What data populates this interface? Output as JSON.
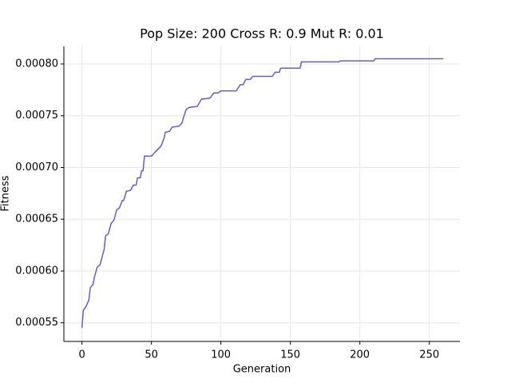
{
  "chart_data": {
    "type": "line",
    "title": "Pop Size: 200 Cross R: 0.9 Mut R: 0.01",
    "xlabel": "Generation",
    "ylabel": "Fitness",
    "x": [
      0,
      1,
      3,
      5,
      6,
      8,
      9,
      11,
      13,
      15,
      16,
      17,
      19,
      21,
      23,
      25,
      27,
      29,
      30,
      32,
      35,
      37,
      39,
      40,
      42,
      43,
      44,
      45,
      50,
      52,
      55,
      57,
      59,
      60,
      63,
      65,
      70,
      72,
      73,
      75,
      77,
      83,
      86,
      92,
      95,
      98,
      100,
      111,
      114,
      116,
      118,
      121,
      123,
      137,
      139,
      142,
      143,
      157,
      158,
      185,
      186,
      210,
      211,
      260
    ],
    "series": [
      {
        "color": "#6a5acd",
        "values": [
          0.000545,
          0.000562,
          0.000566,
          0.000572,
          0.000584,
          0.000587,
          0.000594,
          0.000604,
          0.000606,
          0.000616,
          0.000621,
          0.000634,
          0.000636,
          0.000646,
          0.000649,
          0.000659,
          0.000661,
          0.000668,
          0.000668,
          0.000677,
          0.000678,
          0.000683,
          0.000683,
          0.00069,
          0.00069,
          0.000697,
          0.000697,
          0.000711,
          0.000711,
          0.000714,
          0.000718,
          0.000721,
          0.000728,
          0.000734,
          0.000735,
          0.000739,
          0.00074,
          0.000743,
          0.000748,
          0.000756,
          0.000758,
          0.000759,
          0.000766,
          0.000767,
          0.000772,
          0.000772,
          0.000774,
          0.000774,
          0.00078,
          0.00078,
          0.000785,
          0.000785,
          0.000788,
          0.000788,
          0.000792,
          0.000792,
          0.000796,
          0.000796,
          0.000802,
          0.000802,
          0.000803,
          0.000803,
          0.000805,
          0.000805
        ]
      }
    ],
    "xlim": [
      -13,
      272
    ],
    "ylim": [
      0.000532,
      0.000817
    ],
    "xticks": [
      0,
      50,
      100,
      150,
      200,
      250
    ],
    "yticks": [
      0.00055,
      {
        "value": 0.0006,
        "label": "0.00060"
      },
      0.00065,
      {
        "value": 0.0007,
        "label": "0.00070"
      },
      0.00075,
      {
        "value": 0.0008,
        "label": "0.00080"
      }
    ],
    "grid": true
  }
}
